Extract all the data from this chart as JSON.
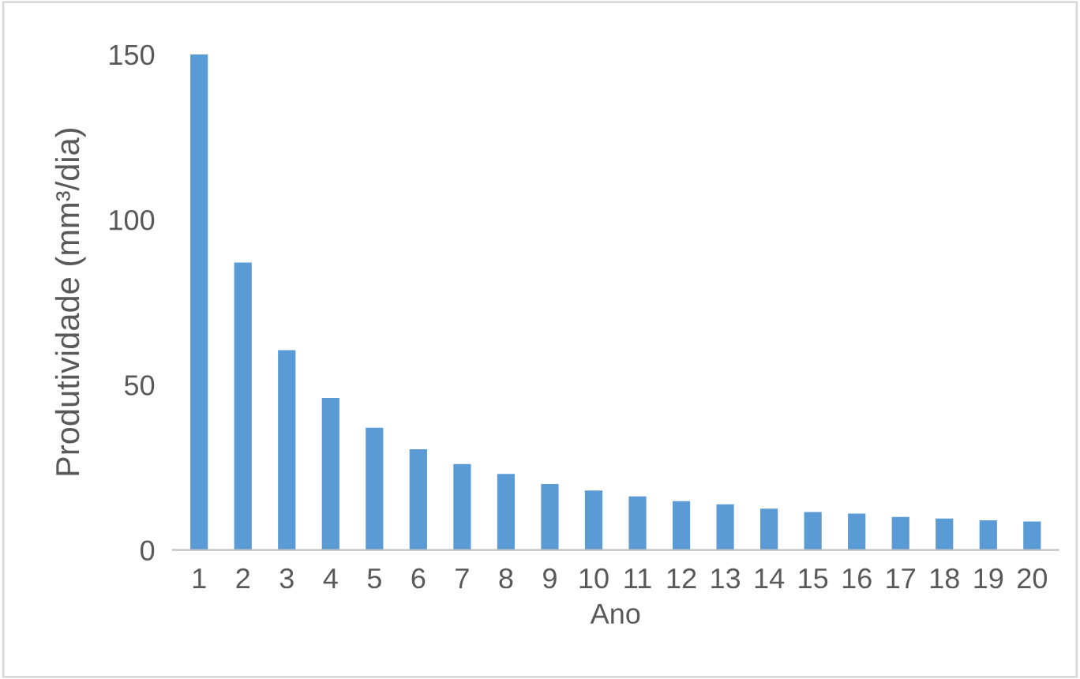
{
  "chart_data": {
    "type": "bar",
    "xlabel": "Ano",
    "ylabel": "Produtividade (mm³/dia)",
    "categories": [
      "1",
      "2",
      "3",
      "4",
      "5",
      "6",
      "7",
      "8",
      "9",
      "10",
      "11",
      "12",
      "13",
      "14",
      "15",
      "16",
      "17",
      "18",
      "19",
      "20"
    ],
    "values": [
      150,
      87,
      60.5,
      46,
      37,
      30.5,
      26,
      23,
      20,
      18,
      16.2,
      14.8,
      13.8,
      12.5,
      11.5,
      11,
      10,
      9.5,
      9,
      8.6
    ],
    "color": "#5b9bd5",
    "ylim": [
      0,
      150
    ],
    "yticks": [
      0,
      50,
      100,
      150
    ],
    "grid": false
  }
}
